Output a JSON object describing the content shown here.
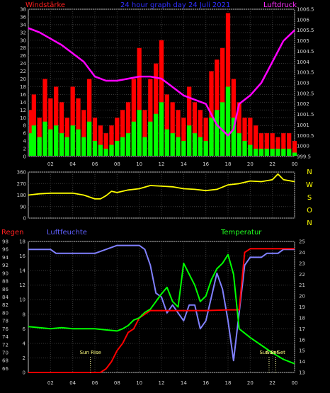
{
  "chart_data": [
    {
      "type": "bar",
      "title": "24 hour graph day  24 Juli 2021",
      "left_label": "Windstärke",
      "right_label": "Luftdruck",
      "x_tick_labels": [
        "02",
        "04",
        "06",
        "08",
        "10",
        "12",
        "14",
        "16",
        "18",
        "20",
        "22",
        "00"
      ],
      "x_range_hours": [
        0,
        24
      ],
      "y_left_ticks": [
        0,
        2,
        4,
        6,
        8,
        10,
        12,
        14,
        16,
        18,
        20,
        22,
        24,
        26,
        28,
        30,
        32,
        34,
        36,
        38
      ],
      "y_left_range": [
        0,
        38
      ],
      "y_right_ticks": [
        "999.5",
        "1000",
        "1000.5",
        "1001",
        "1001.5",
        "1002",
        "1002.5",
        "1003",
        "1003.5",
        "1004",
        "1004.5",
        "1005",
        "1005.5",
        "1006",
        "1006.5"
      ],
      "y_right_range": [
        999.5,
        1006.5
      ],
      "series": [
        {
          "name": "Windstärke Böen",
          "color": "#ff0000",
          "hours": [
            0,
            0.5,
            1,
            1.5,
            2,
            2.5,
            3,
            3.5,
            4,
            4.5,
            5,
            5.5,
            6,
            6.5,
            7,
            7.5,
            8,
            8.5,
            9,
            9.5,
            10,
            10.5,
            11,
            11.5,
            12,
            12.5,
            13,
            13.5,
            14,
            14.5,
            15,
            15.5,
            16,
            16.5,
            17,
            17.5,
            18,
            18.5,
            19,
            19.5,
            20,
            20.5,
            21,
            21.5,
            22,
            22.5,
            23,
            23.5,
            24
          ],
          "values": [
            12,
            16,
            10,
            20,
            15,
            18,
            14,
            10,
            18,
            15,
            12,
            20,
            10,
            8,
            6,
            8,
            10,
            12,
            14,
            20,
            28,
            12,
            20,
            24,
            30,
            16,
            14,
            12,
            10,
            18,
            14,
            12,
            10,
            22,
            25,
            28,
            37,
            20,
            14,
            10,
            10,
            8,
            6,
            6,
            6,
            5,
            6,
            6,
            4
          ]
        },
        {
          "name": "Windstärke",
          "color": "#00ff00",
          "hours": [
            0,
            0.5,
            1,
            1.5,
            2,
            2.5,
            3,
            3.5,
            4,
            4.5,
            5,
            5.5,
            6,
            6.5,
            7,
            7.5,
            8,
            8.5,
            9,
            9.5,
            10,
            10.5,
            11,
            11.5,
            12,
            12.5,
            13,
            13.5,
            14,
            14.5,
            15,
            15.5,
            16,
            16.5,
            17,
            17.5,
            18,
            18.5,
            19,
            19.5,
            20,
            20.5,
            21,
            21.5,
            22,
            22.5,
            23,
            23.5,
            24
          ],
          "values": [
            6,
            8,
            5,
            9,
            7,
            8,
            6,
            5,
            8,
            7,
            5,
            9,
            4,
            3,
            2,
            3,
            4,
            5,
            6,
            9,
            12,
            5,
            9,
            11,
            14,
            7,
            6,
            5,
            4,
            8,
            6,
            5,
            4,
            10,
            12,
            14,
            18,
            10,
            6,
            4,
            3,
            2,
            2,
            2,
            2,
            2,
            2,
            2,
            1
          ]
        },
        {
          "name": "Luftdruck",
          "color": "#ff00ff",
          "axis": "right",
          "hours": [
            0,
            1,
            2,
            3,
            4,
            5,
            6,
            7,
            8,
            9,
            10,
            11,
            12,
            13,
            14,
            15,
            16,
            17,
            18,
            18.5,
            19,
            20,
            21,
            22,
            23,
            24
          ],
          "values": [
            1005.6,
            1005.4,
            1005.1,
            1004.8,
            1004.4,
            1004.0,
            1003.3,
            1003.1,
            1003.1,
            1003.2,
            1003.3,
            1003.3,
            1003.2,
            1002.8,
            1002.4,
            1002.2,
            1002.0,
            1001.0,
            1000.5,
            1000.8,
            1002.0,
            1002.4,
            1003.0,
            1004.0,
            1005.0,
            1005.5
          ]
        }
      ]
    },
    {
      "type": "line",
      "x_range_hours": [
        0,
        24
      ],
      "y_ticks": [
        0,
        90,
        180,
        270,
        360
      ],
      "y_range": [
        0,
        360
      ],
      "direction_labels": [
        "N",
        "W",
        "S",
        "O",
        "N"
      ],
      "series": [
        {
          "name": "Windrichtung",
          "color": "#ffff00",
          "hours": [
            0,
            1,
            2,
            3,
            4,
            5,
            6,
            6.5,
            7,
            7.5,
            8,
            9,
            10,
            11,
            12,
            13,
            14,
            15,
            16,
            17,
            18,
            19,
            20,
            21,
            22,
            22.5,
            23,
            24
          ],
          "values": [
            180,
            190,
            195,
            195,
            195,
            180,
            150,
            150,
            175,
            210,
            200,
            220,
            230,
            255,
            250,
            245,
            230,
            225,
            215,
            225,
            260,
            270,
            290,
            285,
            300,
            345,
            300,
            285
          ]
        }
      ]
    },
    {
      "type": "line",
      "left_label_rain": "Regen",
      "left_label_humidity": "Luftfeuchte",
      "right_label": "Temperatur",
      "x_tick_labels": [
        "02",
        "04",
        "06",
        "08",
        "10",
        "12",
        "14",
        "16",
        "18",
        "20",
        "22",
        "00"
      ],
      "x_range_hours": [
        0,
        24
      ],
      "y_humidity_ticks": [
        66,
        68,
        70,
        72,
        74,
        76,
        78,
        80,
        82,
        84,
        86,
        88,
        90,
        92,
        94,
        96,
        98
      ],
      "y_humidity_range": [
        65,
        98
      ],
      "y_rain_ticks": [
        0,
        2,
        4,
        6,
        8,
        10,
        12,
        14,
        16,
        18
      ],
      "y_rain_range": [
        0,
        18
      ],
      "y_temp_ticks": [
        13,
        14,
        15,
        16,
        17,
        18,
        19,
        20,
        21,
        22,
        23,
        24,
        25
      ],
      "y_temp_range": [
        13,
        25
      ],
      "annotations": [
        {
          "text": "Sun Rise",
          "hour": 5.6
        },
        {
          "text": "Sun Set",
          "hour": 21.7
        },
        {
          "text": "Sun Set",
          "hour": 22.3
        }
      ],
      "series": [
        {
          "name": "Luftfeuchte",
          "color": "#8080ff",
          "hours": [
            0,
            1,
            2,
            2.5,
            3,
            4,
            5,
            6,
            7,
            8,
            9,
            10,
            10.5,
            11,
            11.5,
            12,
            12.5,
            13,
            13.5,
            14,
            14.5,
            15,
            15.5,
            16,
            16.5,
            17,
            17.5,
            18,
            18.5,
            19,
            19.5,
            20,
            20.5,
            21,
            21.5,
            22,
            22.5,
            23,
            23.5,
            24
          ],
          "values": [
            96,
            96,
            96,
            95,
            95,
            95,
            95,
            95,
            96,
            97,
            97,
            97,
            96,
            92,
            85,
            84,
            80,
            82,
            80,
            78,
            82,
            82,
            76,
            78,
            84,
            90,
            86,
            78,
            68,
            80,
            92,
            94,
            94,
            94,
            95,
            95,
            95,
            96,
            96,
            96
          ]
        },
        {
          "name": "Regen",
          "color": "#ff0000",
          "axis": "rain",
          "hours": [
            0,
            6.5,
            7,
            7.5,
            8,
            8.5,
            9,
            9.5,
            10,
            10.5,
            11,
            12,
            14,
            16,
            18,
            19,
            19.5,
            20,
            22,
            24
          ],
          "values": [
            0,
            0,
            0.5,
            1.5,
            3,
            4,
            5.5,
            6,
            7.5,
            8,
            8.5,
            8.5,
            8.5,
            8.5,
            8.6,
            8.6,
            16.5,
            17,
            17,
            17
          ]
        },
        {
          "name": "Temperatur",
          "color": "#00ff00",
          "axis": "temp",
          "hours": [
            0,
            1,
            2,
            3,
            4,
            5,
            6,
            7,
            8,
            8.5,
            9,
            9.5,
            10,
            10.5,
            11,
            11.5,
            12,
            12.5,
            13,
            13.5,
            14,
            14.5,
            15,
            15.5,
            16,
            16.5,
            17,
            17.5,
            18,
            18.5,
            19,
            20,
            21,
            22,
            23,
            24
          ],
          "values": [
            17.2,
            17.1,
            17.0,
            17.1,
            17.0,
            17.0,
            17.0,
            16.9,
            16.8,
            17.0,
            17.3,
            17.8,
            18.0,
            18.5,
            18.8,
            19.5,
            20.2,
            20.8,
            19.5,
            19.0,
            23.0,
            22.0,
            21.0,
            19.5,
            20.0,
            21.5,
            22.5,
            23.0,
            23.8,
            22.0,
            17.0,
            16.2,
            15.5,
            14.8,
            14.2,
            13.8
          ]
        }
      ]
    }
  ]
}
